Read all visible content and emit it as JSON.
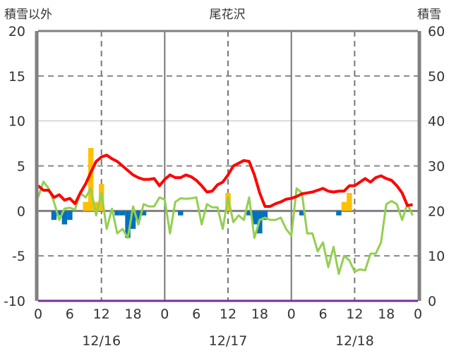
{
  "chart_data": {
    "type": "line",
    "title": "尾花沢",
    "ylabel_left": "積雪以外",
    "ylabel_right": "積雪",
    "ylim_left": [
      -10,
      20
    ],
    "ylim_right": [
      0,
      60
    ],
    "yticks_left": [
      "20",
      "15",
      "10",
      "5",
      "0",
      "-5",
      "-10"
    ],
    "yticks_right": [
      "60",
      "50",
      "40",
      "30",
      "20",
      "10",
      "0"
    ],
    "xlim_hours": [
      0,
      72
    ],
    "xticks": [
      "0",
      "6",
      "12",
      "18",
      "0",
      "6",
      "12",
      "18",
      "0",
      "6",
      "12",
      "18",
      "0"
    ],
    "date_labels": [
      "12/16",
      "12/17",
      "12/18"
    ],
    "colors": {
      "temperature": "#ff0000",
      "snow_depth": "#92d050",
      "snowfall": "#ffc000",
      "snow_decrease": "#0070c0",
      "axis_bottom": "#7030a0"
    },
    "series": [
      {
        "name": "temperature",
        "axis": "left",
        "values": [
          2.8,
          2.3,
          2.3,
          1.5,
          1.8,
          1.2,
          1.4,
          0.8,
          2.0,
          3.0,
          4.3,
          5.5,
          6.0,
          6.2,
          5.8,
          5.5,
          5.0,
          4.5,
          4.0,
          3.7,
          3.5,
          3.5,
          3.6,
          2.8,
          3.5,
          4.0,
          3.7,
          3.7,
          4.0,
          3.8,
          3.4,
          2.8,
          2.1,
          2.2,
          2.9,
          3.2,
          4.0,
          5.0,
          5.3,
          5.6,
          5.5,
          4.0,
          2.0,
          0.5,
          0.5,
          0.8,
          1.0,
          1.3,
          1.4,
          1.6,
          1.9,
          2.0,
          2.1,
          2.3,
          2.5,
          2.2,
          2.1,
          2.2,
          2.2,
          2.8,
          2.8,
          3.2,
          3.6,
          3.2,
          3.7,
          3.9,
          3.6,
          3.4,
          2.8,
          2.0,
          0.6,
          0.7,
          0.8,
          0.7,
          1.0,
          0.9
        ]
      },
      {
        "name": "snow_depth",
        "axis": "right",
        "values": [
          23,
          26.5,
          25,
          22,
          18,
          20.5,
          20.7,
          20.3,
          24,
          23,
          25,
          19,
          24,
          16,
          20.5,
          15,
          16,
          14,
          21,
          17,
          21.5,
          21,
          21,
          23,
          22.5,
          15,
          22,
          22.8,
          22.7,
          22.8,
          23,
          17,
          21.5,
          20.8,
          20.8,
          16,
          23,
          17.5,
          19,
          18,
          23,
          14,
          18,
          18.5,
          18,
          18,
          18.5,
          16,
          14.5,
          25,
          24,
          15,
          15,
          11,
          13,
          7.5,
          12,
          6,
          10,
          9,
          6.5,
          7,
          6.8,
          10.5,
          10.5,
          13,
          21.5,
          22.2,
          21.5,
          18,
          21.5,
          19
        ]
      },
      {
        "name": "snow_change",
        "axis": "left",
        "type": "bar",
        "bars": [
          {
            "h": 3,
            "v": -1
          },
          {
            "h": 4,
            "v": -0.5
          },
          {
            "h": 5,
            "v": -1.5
          },
          {
            "h": 6,
            "v": -1
          },
          {
            "h": 9,
            "v": 1
          },
          {
            "h": 10,
            "v": 7
          },
          {
            "h": 11,
            "v": 1
          },
          {
            "h": 12,
            "v": 3
          },
          {
            "h": 15,
            "v": -0.5
          },
          {
            "h": 16,
            "v": -0.5
          },
          {
            "h": 17,
            "v": -3
          },
          {
            "h": 18,
            "v": -2
          },
          {
            "h": 19,
            "v": -1
          },
          {
            "h": 20,
            "v": -0.5
          },
          {
            "h": 27,
            "v": -0.5
          },
          {
            "h": 36,
            "v": 2
          },
          {
            "h": 40,
            "v": -0.5
          },
          {
            "h": 41,
            "v": -1.5
          },
          {
            "h": 42,
            "v": -2.5
          },
          {
            "h": 43,
            "v": -1
          },
          {
            "h": 50,
            "v": -0.5
          },
          {
            "h": 57,
            "v": -0.5
          },
          {
            "h": 58,
            "v": 1
          },
          {
            "h": 59,
            "v": 2
          }
        ]
      }
    ]
  }
}
